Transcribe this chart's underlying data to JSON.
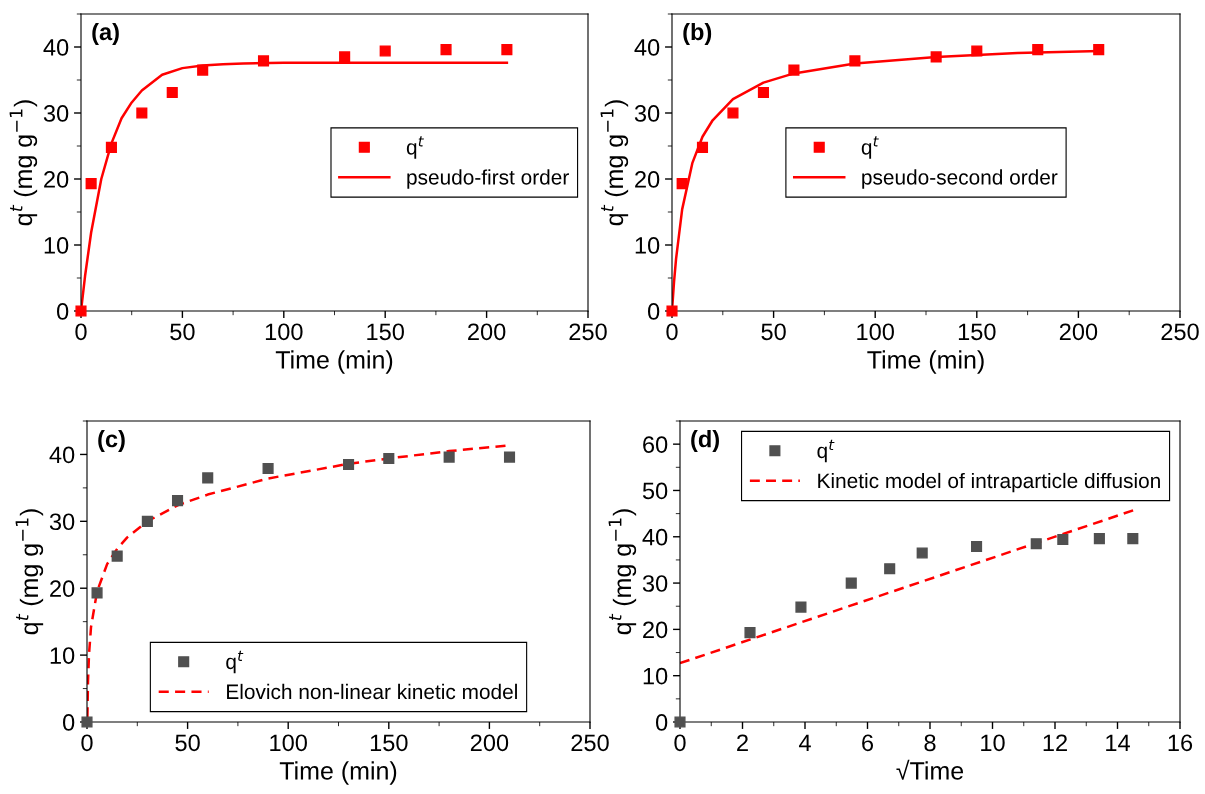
{
  "chart_data": [
    {
      "type": "scatter",
      "xlabel": "Time (min)",
      "ylabel": "q$^{t}$ (mg g$^{−1}$)",
      "annotations": [
        "(a)"
      ],
      "xlim": [
        0,
        250
      ],
      "xticks": [
        0,
        50,
        100,
        150,
        200,
        250
      ],
      "ylim": [
        0,
        45
      ],
      "yticks": [
        0,
        10,
        20,
        30,
        40
      ],
      "legend": "center right",
      "grid": false,
      "series": [
        {
          "name": "q$^{t}$",
          "marker": "square",
          "color": "#ff0000",
          "x": [
            0,
            5,
            15,
            30,
            45,
            60,
            90,
            130,
            150,
            180,
            210
          ],
          "values": [
            0,
            19.3,
            24.8,
            30,
            33.1,
            36.5,
            37.9,
            38.5,
            39.4,
            39.6,
            39.6
          ]
        },
        {
          "name": "pseudo-first order",
          "type": "line",
          "line_style": "solid",
          "color": "#ff0000",
          "x": [
            0,
            2,
            5,
            10,
            15,
            20,
            25,
            30,
            40,
            50,
            60,
            70,
            80,
            100,
            150,
            210
          ],
          "values": [
            0,
            5.3,
            11.9,
            20.0,
            25.4,
            29.2,
            31.6,
            33.4,
            35.8,
            36.8,
            37.2,
            37.4,
            37.5,
            37.6,
            37.6,
            37.6
          ]
        }
      ]
    },
    {
      "type": "scatter",
      "xlabel": "Time (min)",
      "ylabel": "q$^{t}$ (mg g$^{−1}$)",
      "annotations": [
        "(b)"
      ],
      "xlim": [
        0,
        250
      ],
      "xticks": [
        0,
        50,
        100,
        150,
        200,
        250
      ],
      "ylim": [
        0,
        45
      ],
      "yticks": [
        0,
        10,
        20,
        30,
        40
      ],
      "legend": "center",
      "grid": false,
      "series": [
        {
          "name": "q$^{t}$",
          "marker": "square",
          "color": "#ff0000",
          "x": [
            0,
            5,
            15,
            30,
            45,
            60,
            90,
            130,
            150,
            180,
            210
          ],
          "values": [
            0,
            19.3,
            24.8,
            30,
            33.1,
            36.5,
            37.9,
            38.5,
            39.4,
            39.6,
            39.6
          ]
        },
        {
          "name": "pseudo-second order",
          "type": "line",
          "line_style": "solid",
          "color": "#ff0000",
          "x": [
            0,
            1,
            2,
            5,
            10,
            15,
            20,
            30,
            45,
            60,
            90,
            130,
            170,
            210
          ],
          "values": [
            0,
            4.4,
            7.9,
            15.4,
            22.4,
            26.4,
            28.9,
            32.1,
            34.6,
            36.0,
            37.5,
            38.5,
            39.1,
            39.4
          ]
        }
      ]
    },
    {
      "type": "scatter",
      "xlabel": "Time (min)",
      "ylabel": "q$^{t}$ (mg g$^{−1}$)",
      "annotations": [
        "(c)"
      ],
      "xlim": [
        0,
        250
      ],
      "xticks": [
        0,
        50,
        100,
        150,
        200,
        250
      ],
      "ylim": [
        0,
        45
      ],
      "yticks": [
        0,
        10,
        20,
        30,
        40
      ],
      "legend": "lower center",
      "grid": false,
      "series": [
        {
          "name": "q$^{t}$",
          "marker": "square",
          "color": "#505050",
          "x": [
            0,
            5,
            15,
            30,
            45,
            60,
            90,
            130,
            150,
            180,
            210
          ],
          "values": [
            0,
            19.3,
            24.8,
            30,
            33.1,
            36.5,
            37.9,
            38.5,
            39.4,
            39.6,
            39.6
          ]
        },
        {
          "name": "Elovich non-linear kinetic model",
          "type": "line",
          "line_style": "dashed",
          "color": "#ff0000",
          "x": [
            0.2,
            0.5,
            1,
            2,
            5,
            10,
            15,
            20,
            30,
            45,
            60,
            90,
            130,
            150,
            180,
            208
          ],
          "values": [
            0.7,
            6.1,
            10.1,
            14.2,
            19.5,
            23.6,
            25.9,
            27.6,
            30.0,
            32.4,
            34.0,
            36.4,
            38.6,
            39.4,
            40.5,
            41.3
          ]
        }
      ]
    },
    {
      "type": "scatter",
      "xlabel": "√Time",
      "ylabel": "q$^{t}$ (mg g$^{−1}$)",
      "annotations": [
        "(d)"
      ],
      "xlim": [
        0,
        16
      ],
      "xticks": [
        0,
        2,
        4,
        6,
        8,
        10,
        12,
        14,
        16
      ],
      "ylim": [
        0,
        65
      ],
      "yticks": [
        0,
        10,
        20,
        30,
        40,
        50,
        60
      ],
      "legend": "upper right",
      "grid": false,
      "series": [
        {
          "name": "q$^{t}$",
          "marker": "square",
          "color": "#505050",
          "x": [
            0,
            2.24,
            3.87,
            5.48,
            6.71,
            7.75,
            9.49,
            11.4,
            12.25,
            13.42,
            14.49
          ],
          "values": [
            0,
            19.3,
            24.8,
            30,
            33.1,
            36.5,
            37.9,
            38.5,
            39.4,
            39.6,
            39.6
          ]
        },
        {
          "name": "Kinetic model of intraparticle diffusion",
          "type": "line",
          "line_style": "dashed",
          "color": "#ff0000",
          "x": [
            0,
            14.5
          ],
          "values": [
            12.7,
            45.7
          ]
        }
      ]
    }
  ]
}
